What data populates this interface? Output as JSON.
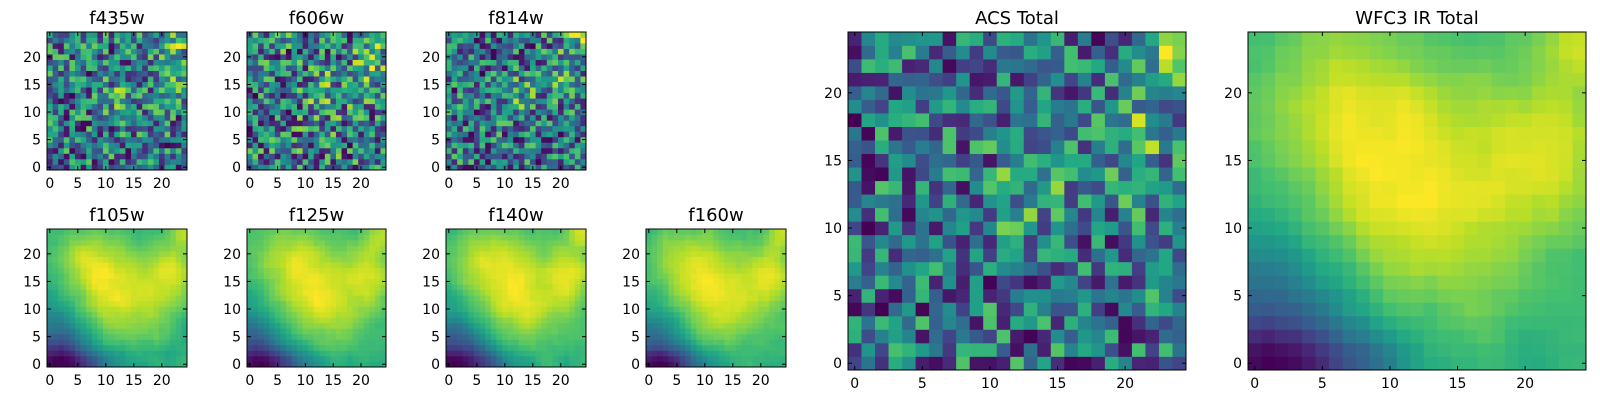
{
  "chart_data": [
    {
      "type": "heatmap",
      "title": "f435w",
      "xlabel": "",
      "ylabel": "",
      "xlim": [
        -0.5,
        24.5
      ],
      "ylim": [
        -0.5,
        24.5
      ],
      "xticks": [
        0,
        5,
        10,
        15,
        20
      ],
      "yticks": [
        0,
        5,
        10,
        15,
        20
      ],
      "grid": false,
      "colormap": "viridis",
      "pattern": "noisy"
    },
    {
      "type": "heatmap",
      "title": "f606w",
      "xlabel": "",
      "ylabel": "",
      "xlim": [
        -0.5,
        24.5
      ],
      "ylim": [
        -0.5,
        24.5
      ],
      "xticks": [
        0,
        5,
        10,
        15,
        20
      ],
      "yticks": [
        0,
        5,
        10,
        15,
        20
      ],
      "grid": false,
      "colormap": "viridis",
      "pattern": "noisy"
    },
    {
      "type": "heatmap",
      "title": "f814w",
      "xlabel": "",
      "ylabel": "",
      "xlim": [
        -0.5,
        24.5
      ],
      "ylim": [
        -0.5,
        24.5
      ],
      "xticks": [
        0,
        5,
        10,
        15,
        20
      ],
      "yticks": [
        0,
        5,
        10,
        15,
        20
      ],
      "grid": false,
      "colormap": "viridis",
      "pattern": "noisy"
    },
    {
      "type": "heatmap",
      "title": "f105w",
      "xlabel": "",
      "ylabel": "",
      "xlim": [
        -0.5,
        24.5
      ],
      "ylim": [
        -0.5,
        24.5
      ],
      "xticks": [
        0,
        5,
        10,
        15,
        20
      ],
      "yticks": [
        0,
        5,
        10,
        15,
        20
      ],
      "grid": false,
      "colormap": "viridis",
      "pattern": "smooth"
    },
    {
      "type": "heatmap",
      "title": "f125w",
      "xlabel": "",
      "ylabel": "",
      "xlim": [
        -0.5,
        24.5
      ],
      "ylim": [
        -0.5,
        24.5
      ],
      "xticks": [
        0,
        5,
        10,
        15,
        20
      ],
      "yticks": [
        0,
        5,
        10,
        15,
        20
      ],
      "grid": false,
      "colormap": "viridis",
      "pattern": "smooth"
    },
    {
      "type": "heatmap",
      "title": "f140w",
      "xlabel": "",
      "ylabel": "",
      "xlim": [
        -0.5,
        24.5
      ],
      "ylim": [
        -0.5,
        24.5
      ],
      "xticks": [
        0,
        5,
        10,
        15,
        20
      ],
      "yticks": [
        0,
        5,
        10,
        15,
        20
      ],
      "grid": false,
      "colormap": "viridis",
      "pattern": "smooth"
    },
    {
      "type": "heatmap",
      "title": "f160w",
      "xlabel": "",
      "ylabel": "",
      "xlim": [
        -0.5,
        24.5
      ],
      "ylim": [
        -0.5,
        24.5
      ],
      "xticks": [
        0,
        5,
        10,
        15,
        20
      ],
      "yticks": [
        0,
        5,
        10,
        15,
        20
      ],
      "grid": false,
      "colormap": "viridis",
      "pattern": "smooth"
    },
    {
      "type": "heatmap",
      "title": "ACS Total",
      "xlabel": "",
      "ylabel": "",
      "xlim": [
        -0.5,
        24.5
      ],
      "ylim": [
        -0.5,
        24.5
      ],
      "xticks": [
        0,
        5,
        10,
        15,
        20
      ],
      "yticks": [
        0,
        5,
        10,
        15,
        20
      ],
      "grid": false,
      "colormap": "viridis",
      "pattern": "noisy"
    },
    {
      "type": "heatmap",
      "title": "WFC3 IR Total",
      "xlabel": "",
      "ylabel": "",
      "xlim": [
        -0.5,
        24.5
      ],
      "ylim": [
        -0.5,
        24.5
      ],
      "xticks": [
        0,
        5,
        10,
        15,
        20
      ],
      "yticks": [
        0,
        5,
        10,
        15,
        20
      ],
      "grid": false,
      "colormap": "viridis",
      "pattern": "smooth"
    }
  ]
}
